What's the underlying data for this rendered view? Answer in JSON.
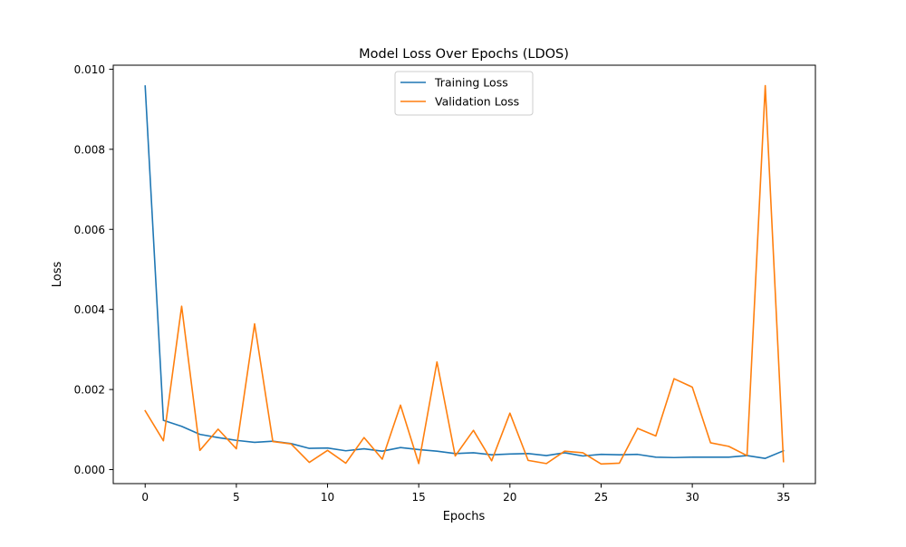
{
  "chart_data": {
    "type": "line",
    "title": "Model Loss Over Epochs (LDOS)",
    "xlabel": "Epochs",
    "ylabel": "Loss",
    "xlim": [
      -1.75,
      36.75
    ],
    "ylim": [
      -0.00035,
      0.0101
    ],
    "x_ticks": [
      0,
      5,
      10,
      15,
      20,
      25,
      30,
      35
    ],
    "x_tick_labels": [
      "0",
      "5",
      "10",
      "15",
      "20",
      "25",
      "30",
      "35"
    ],
    "y_ticks": [
      0.0,
      0.002,
      0.004,
      0.006,
      0.008,
      0.01
    ],
    "y_tick_labels": [
      "0.000",
      "0.002",
      "0.004",
      "0.006",
      "0.008",
      "0.010"
    ],
    "grid": false,
    "legend_position": "top-center",
    "x": [
      0,
      1,
      2,
      3,
      4,
      5,
      6,
      7,
      8,
      9,
      10,
      11,
      12,
      13,
      14,
      15,
      16,
      17,
      18,
      19,
      20,
      21,
      22,
      23,
      24,
      25,
      26,
      27,
      28,
      29,
      30,
      31,
      32,
      33,
      34,
      35
    ],
    "series": [
      {
        "name": "Training Loss",
        "color": "#1f77b4",
        "values": [
          0.00958,
          0.00123,
          0.00108,
          0.00088,
          0.0008,
          0.00073,
          0.00068,
          0.00071,
          0.00065,
          0.00053,
          0.00054,
          0.00047,
          0.00052,
          0.00046,
          0.00055,
          0.0005,
          0.00046,
          0.0004,
          0.00042,
          0.00037,
          0.00039,
          0.0004,
          0.00035,
          0.00042,
          0.00034,
          0.00038,
          0.00037,
          0.00038,
          0.00031,
          0.0003,
          0.00031,
          0.00031,
          0.00031,
          0.00035,
          0.00028,
          0.00047
        ]
      },
      {
        "name": "Validation Loss",
        "color": "#ff7f0e",
        "values": [
          0.00147,
          0.00072,
          0.00408,
          0.00048,
          0.00101,
          0.00052,
          0.00364,
          0.0007,
          0.00064,
          0.00018,
          0.00048,
          0.00016,
          0.0008,
          0.00026,
          0.00161,
          0.00015,
          0.00269,
          0.00034,
          0.00098,
          0.00022,
          0.00141,
          0.00023,
          0.00015,
          0.00046,
          0.00042,
          0.00014,
          0.00016,
          0.00103,
          0.00084,
          0.00227,
          0.00206,
          0.00067,
          0.00058,
          0.00035,
          0.00959,
          0.0002
        ]
      }
    ]
  }
}
